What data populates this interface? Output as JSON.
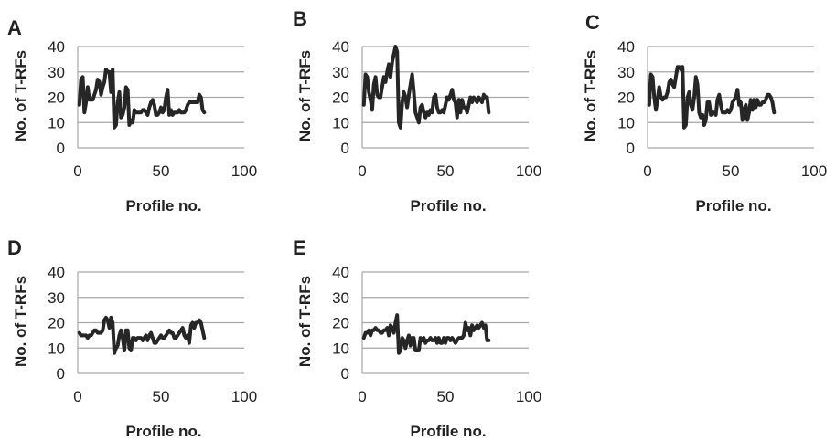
{
  "chart_data": [
    {
      "panel": "A",
      "type": "line",
      "xlabel": "Profile no.",
      "ylabel": "No. of T-RFs",
      "xlim": [
        0,
        100
      ],
      "ylim": [
        0,
        40
      ],
      "xticks": [
        "0",
        "50",
        "100"
      ],
      "yticks": [
        "0",
        "10",
        "20",
        "30",
        "40"
      ],
      "grid": true,
      "series": [
        {
          "color": "#262626",
          "x": [
            1,
            2,
            3,
            4,
            5,
            6,
            7,
            8,
            9,
            10,
            11,
            12,
            13,
            14,
            15,
            16,
            17,
            18,
            19,
            20,
            21,
            22,
            23,
            24,
            25,
            26,
            27,
            28,
            29,
            30,
            31,
            32,
            33,
            34,
            35,
            36,
            37,
            38,
            39,
            40,
            41,
            42,
            43,
            44,
            45,
            46,
            47,
            48,
            49,
            50,
            51,
            52,
            53,
            54,
            55,
            56,
            57,
            58,
            59,
            60,
            61,
            62,
            63,
            64,
            65,
            66,
            67,
            68,
            69,
            70,
            71,
            72,
            73,
            74,
            75,
            76
          ],
          "y": [
            17,
            27,
            28,
            14,
            18,
            24,
            19,
            19,
            19,
            21,
            23,
            27,
            26,
            21,
            24,
            26,
            31,
            30,
            30,
            22,
            31,
            8,
            9,
            18,
            22,
            12,
            13,
            16,
            24,
            23,
            9,
            11,
            10,
            15,
            14,
            14,
            14,
            14,
            15,
            15,
            14,
            13,
            16,
            18,
            19,
            17,
            13,
            13,
            14,
            16,
            14,
            15,
            20,
            23,
            13,
            15,
            13,
            14,
            14,
            14,
            15,
            14,
            14,
            14,
            15,
            17,
            18,
            18,
            18,
            18,
            18,
            18,
            21,
            20,
            15,
            14
          ]
        }
      ]
    },
    {
      "panel": "B",
      "type": "line",
      "xlabel": "Profile no.",
      "ylabel": "No. of T-RFs",
      "xlim": [
        0,
        100
      ],
      "ylim": [
        0,
        40
      ],
      "xticks": [
        "0",
        "50",
        "100"
      ],
      "yticks": [
        "0",
        "10",
        "20",
        "30",
        "40"
      ],
      "grid": true,
      "series": [
        {
          "color": "#262626",
          "x": [
            1,
            2,
            3,
            4,
            5,
            6,
            7,
            8,
            9,
            10,
            11,
            12,
            13,
            14,
            15,
            16,
            17,
            18,
            19,
            20,
            21,
            22,
            23,
            24,
            25,
            26,
            27,
            28,
            29,
            30,
            31,
            32,
            33,
            34,
            35,
            36,
            37,
            38,
            39,
            40,
            41,
            42,
            43,
            44,
            45,
            46,
            47,
            48,
            49,
            50,
            51,
            52,
            53,
            54,
            55,
            56,
            57,
            58,
            59,
            60,
            61,
            62,
            63,
            64,
            65,
            66,
            67,
            68,
            69,
            70,
            71,
            72,
            73,
            74,
            75,
            76
          ],
          "y": [
            17,
            29,
            28,
            22,
            19,
            15,
            25,
            28,
            21,
            20,
            20,
            24,
            28,
            26,
            30,
            33,
            28,
            34,
            37,
            40,
            38,
            10,
            8,
            18,
            22,
            20,
            16,
            21,
            25,
            29,
            22,
            14,
            12,
            10,
            16,
            17,
            14,
            12,
            14,
            13,
            15,
            14,
            20,
            21,
            16,
            14,
            14,
            15,
            14,
            17,
            20,
            19,
            21,
            23,
            19,
            18,
            12,
            19,
            14,
            19,
            16,
            16,
            14,
            17,
            20,
            18,
            20,
            19,
            18,
            20,
            19,
            18,
            21,
            20,
            20,
            14
          ]
        }
      ]
    },
    {
      "panel": "C",
      "type": "line",
      "xlabel": "Profile no.",
      "ylabel": "No. of T-RFs",
      "xlim": [
        0,
        100
      ],
      "ylim": [
        0,
        40
      ],
      "xticks": [
        "0",
        "50",
        "100"
      ],
      "yticks": [
        "0",
        "10",
        "20",
        "30",
        "40"
      ],
      "grid": true,
      "series": [
        {
          "color": "#262626",
          "x": [
            1,
            2,
            3,
            4,
            5,
            6,
            7,
            8,
            9,
            10,
            11,
            12,
            13,
            14,
            15,
            16,
            17,
            18,
            19,
            20,
            21,
            22,
            23,
            24,
            25,
            26,
            27,
            28,
            29,
            30,
            31,
            32,
            33,
            34,
            35,
            36,
            37,
            38,
            39,
            40,
            41,
            42,
            43,
            44,
            45,
            46,
            47,
            48,
            49,
            50,
            51,
            52,
            53,
            54,
            55,
            56,
            57,
            58,
            59,
            60,
            61,
            62,
            63,
            64,
            65,
            66,
            67,
            68,
            69,
            70,
            71,
            72,
            73,
            74,
            75,
            76
          ],
          "y": [
            17,
            29,
            28,
            20,
            15,
            19,
            24,
            20,
            19,
            20,
            20,
            22,
            26,
            27,
            25,
            24,
            28,
            32,
            32,
            31,
            32,
            8,
            9,
            20,
            22,
            17,
            15,
            20,
            28,
            25,
            14,
            12,
            13,
            9,
            11,
            18,
            18,
            13,
            14,
            14,
            13,
            19,
            21,
            17,
            14,
            14,
            14,
            15,
            14,
            15,
            18,
            19,
            20,
            23,
            17,
            18,
            11,
            15,
            17,
            11,
            14,
            19,
            15,
            19,
            16,
            19,
            17,
            17,
            18,
            18,
            19,
            21,
            21,
            20,
            18,
            14
          ]
        }
      ]
    },
    {
      "panel": "D",
      "type": "line",
      "xlabel": "Profile no.",
      "ylabel": "No. of T-RFs",
      "xlim": [
        0,
        100
      ],
      "ylim": [
        0,
        40
      ],
      "xticks": [
        "0",
        "50",
        "100"
      ],
      "yticks": [
        "0",
        "10",
        "20",
        "30",
        "40"
      ],
      "grid": true,
      "series": [
        {
          "color": "#262626",
          "x": [
            1,
            2,
            3,
            4,
            5,
            6,
            7,
            8,
            9,
            10,
            11,
            12,
            13,
            14,
            15,
            16,
            17,
            18,
            19,
            20,
            21,
            22,
            23,
            24,
            25,
            26,
            27,
            28,
            29,
            30,
            31,
            32,
            33,
            34,
            35,
            36,
            37,
            38,
            39,
            40,
            41,
            42,
            43,
            44,
            45,
            46,
            47,
            48,
            49,
            50,
            51,
            52,
            53,
            54,
            55,
            56,
            57,
            58,
            59,
            60,
            61,
            62,
            63,
            64,
            65,
            66,
            67,
            68,
            69,
            70,
            71,
            72,
            73,
            74,
            75,
            76
          ],
          "y": [
            16,
            15,
            15,
            15,
            15,
            14,
            15,
            15,
            16,
            17,
            17,
            16,
            16,
            16,
            17,
            21,
            22,
            21,
            18,
            22,
            20,
            8,
            10,
            11,
            15,
            17,
            14,
            9,
            17,
            17,
            10,
            9,
            14,
            14,
            13,
            14,
            14,
            14,
            13,
            14,
            15,
            13,
            15,
            16,
            14,
            12,
            12,
            13,
            14,
            15,
            14,
            14,
            15,
            16,
            17,
            16,
            16,
            14,
            14,
            15,
            16,
            17,
            18,
            15,
            14,
            15,
            12,
            19,
            20,
            18,
            20,
            20,
            21,
            20,
            17,
            14
          ]
        }
      ]
    },
    {
      "panel": "E",
      "type": "line",
      "xlabel": "Profile no.",
      "ylabel": "No. of T-RFs",
      "xlim": [
        0,
        100
      ],
      "ylim": [
        0,
        40
      ],
      "xticks": [
        "0",
        "50",
        "100"
      ],
      "yticks": [
        "0",
        "10",
        "20",
        "30",
        "40"
      ],
      "grid": true,
      "series": [
        {
          "color": "#262626",
          "x": [
            1,
            2,
            3,
            4,
            5,
            6,
            7,
            8,
            9,
            10,
            11,
            12,
            13,
            14,
            15,
            16,
            17,
            18,
            19,
            20,
            21,
            22,
            23,
            24,
            25,
            26,
            27,
            28,
            29,
            30,
            31,
            32,
            33,
            34,
            35,
            36,
            37,
            38,
            39,
            40,
            41,
            42,
            43,
            44,
            45,
            46,
            47,
            48,
            49,
            50,
            51,
            52,
            53,
            54,
            55,
            56,
            57,
            58,
            59,
            60,
            61,
            62,
            63,
            64,
            65,
            66,
            67,
            68,
            69,
            70,
            71,
            72,
            73,
            74,
            75,
            76
          ],
          "y": [
            14,
            16,
            16,
            17,
            15,
            17,
            17,
            18,
            17,
            17,
            16,
            16,
            17,
            17,
            18,
            15,
            19,
            18,
            16,
            20,
            23,
            8,
            9,
            14,
            13,
            10,
            13,
            15,
            11,
            14,
            14,
            9,
            9,
            9,
            14,
            13,
            14,
            12,
            13,
            13,
            14,
            13,
            13,
            14,
            12,
            14,
            12,
            12,
            14,
            12,
            14,
            14,
            13,
            14,
            13,
            12,
            13,
            14,
            14,
            14,
            15,
            20,
            17,
            18,
            15,
            19,
            17,
            18,
            19,
            18,
            19,
            20,
            18,
            19,
            13,
            13
          ]
        }
      ]
    }
  ]
}
